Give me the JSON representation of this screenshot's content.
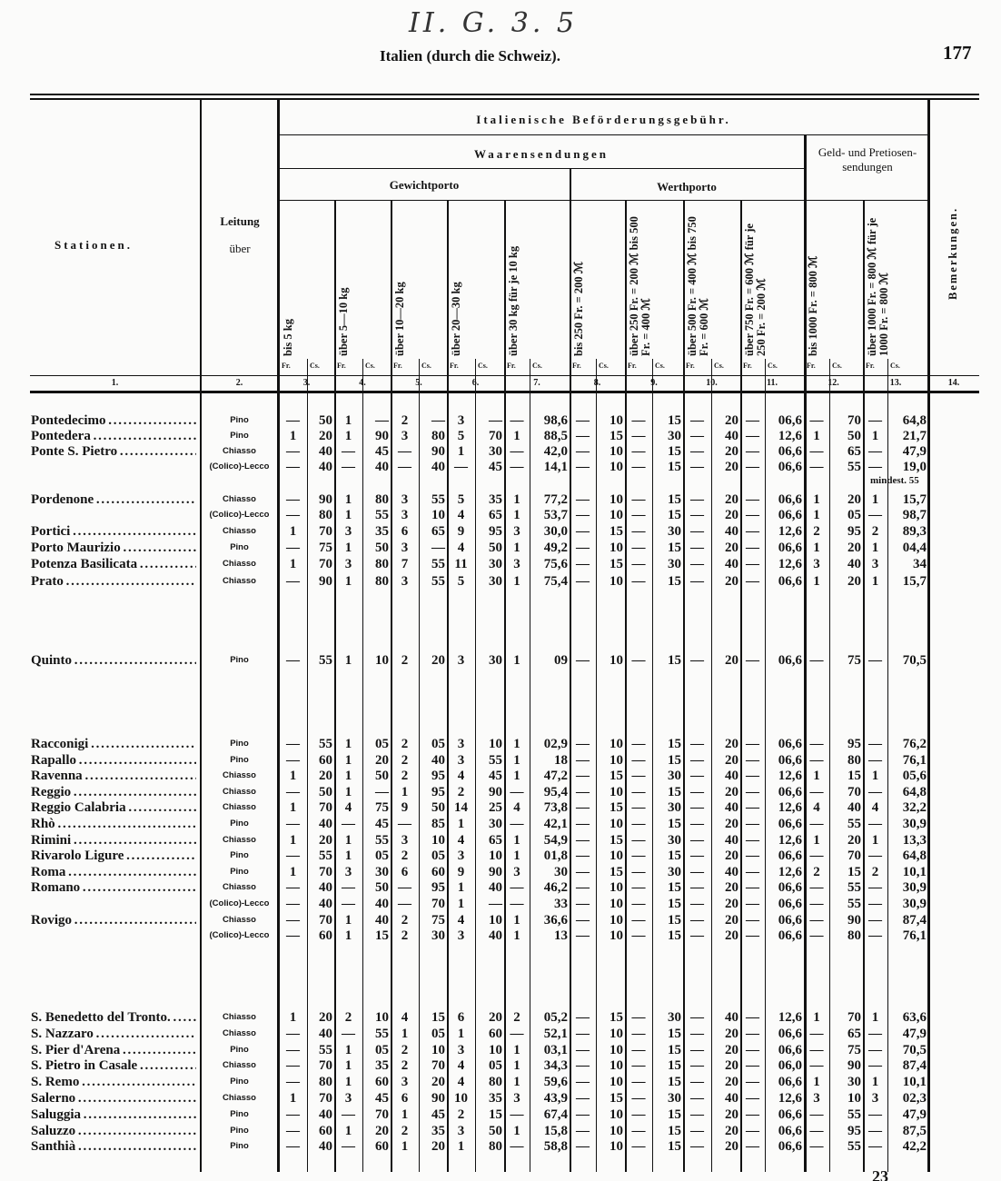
{
  "page": {
    "handwritten_mark": "II. G. 3. 5",
    "title": "Italien (durch die Schweiz).",
    "page_number": "177",
    "footer_number": "23"
  },
  "header": {
    "stations": "Stationen.",
    "leitung": "Leitung",
    "ueber": "über",
    "main": "Italienische Beförderungsgebühr.",
    "waaren": "Waarensendungen",
    "gewicht": "Gewichtporto",
    "werth": "Werthporto",
    "geld": "Geld- und Pretiosen-sendungen",
    "bemerkungen": "Bemerkungen.",
    "fr": "Fr.",
    "cs": "Cs.",
    "columns": [
      "bis 5 kg",
      "über 5—10 kg",
      "über 10—20 kg",
      "über 20—30 kg",
      "über 30 kg für je 10 kg",
      "bis 250 Fr. = 200 ℳ",
      "über 250 Fr. = 200 ℳ bis 500 Fr. = 400 ℳ",
      "über 500 Fr. = 400 ℳ bis 750 Fr. = 600 ℳ",
      "über 750 Fr. = 600 ℳ für je 250 Fr. = 200 ℳ",
      "bis 1000 Fr. = 800 ℳ",
      "über 1000 Fr. = 800 ℳ für je 1000 Fr. = 800 ℳ"
    ],
    "column_numbers": [
      "1.",
      "2.",
      "3.",
      "4.",
      "5.",
      "6.",
      "7.",
      "8.",
      "9.",
      "10.",
      "11.",
      "12.",
      "13.",
      "14."
    ]
  },
  "note": "mindest. 55",
  "rows": [
    {
      "station": "Pontedecimo",
      "via": "Pino",
      "v": [
        "—",
        "50",
        "1",
        "—",
        "2",
        "—",
        "3",
        "—",
        "—",
        "98,6",
        "—",
        "10",
        "—",
        "15",
        "—",
        "20",
        "—",
        "06,6",
        "—",
        "70",
        "—",
        "64,8"
      ]
    },
    {
      "station": "Pontedera",
      "via": "Pino",
      "v": [
        "1",
        "20",
        "1",
        "90",
        "3",
        "80",
        "5",
        "70",
        "1",
        "88,5",
        "—",
        "15",
        "—",
        "30",
        "—",
        "40",
        "—",
        "12,6",
        "1",
        "50",
        "1",
        "21,7"
      ]
    },
    {
      "station": "Ponte S. Pietro",
      "via": "Chiasso",
      "v": [
        "—",
        "40",
        "—",
        "45",
        "—",
        "90",
        "1",
        "30",
        "—",
        "42,0",
        "—",
        "10",
        "—",
        "15",
        "—",
        "20",
        "—",
        "06,6",
        "—",
        "65",
        "—",
        "47,9"
      ]
    },
    {
      "station": "",
      "via": "(Colico)-Lecco",
      "v": [
        "—",
        "40",
        "—",
        "40",
        "—",
        "40",
        "—",
        "45",
        "—",
        "14,1",
        "—",
        "10",
        "—",
        "15",
        "—",
        "20",
        "—",
        "06,6",
        "—",
        "55",
        "—",
        "19,0"
      ]
    },
    {
      "station": "Pordenone",
      "via": "Chiasso",
      "v": [
        "—",
        "90",
        "1",
        "80",
        "3",
        "55",
        "5",
        "35",
        "1",
        "77,2",
        "—",
        "10",
        "—",
        "15",
        "—",
        "20",
        "—",
        "06,6",
        "1",
        "20",
        "1",
        "15,7"
      ]
    },
    {
      "station": "",
      "via": "(Colico)-Lecco",
      "v": [
        "—",
        "80",
        "1",
        "55",
        "3",
        "10",
        "4",
        "65",
        "1",
        "53,7",
        "—",
        "10",
        "—",
        "15",
        "—",
        "20",
        "—",
        "06,6",
        "1",
        "05",
        "—",
        "98,7"
      ]
    },
    {
      "station": "Portici",
      "via": "Chiasso",
      "v": [
        "1",
        "70",
        "3",
        "35",
        "6",
        "65",
        "9",
        "95",
        "3",
        "30,0",
        "—",
        "15",
        "—",
        "30",
        "—",
        "40",
        "—",
        "12,6",
        "2",
        "95",
        "2",
        "89,3"
      ]
    },
    {
      "station": "Porto Maurizio",
      "via": "Pino",
      "v": [
        "—",
        "75",
        "1",
        "50",
        "3",
        "—",
        "4",
        "50",
        "1",
        "49,2",
        "—",
        "10",
        "—",
        "15",
        "—",
        "20",
        "—",
        "06,6",
        "1",
        "20",
        "1",
        "04,4"
      ]
    },
    {
      "station": "Potenza Basilicata",
      "via": "Chiasso",
      "v": [
        "1",
        "70",
        "3",
        "80",
        "7",
        "55",
        "11",
        "30",
        "3",
        "75,6",
        "—",
        "15",
        "—",
        "30",
        "—",
        "40",
        "—",
        "12,6",
        "3",
        "40",
        "3",
        "34"
      ]
    },
    {
      "station": "Prato",
      "via": "Chiasso",
      "v": [
        "—",
        "90",
        "1",
        "80",
        "3",
        "55",
        "5",
        "30",
        "1",
        "75,4",
        "—",
        "10",
        "—",
        "15",
        "—",
        "20",
        "—",
        "06,6",
        "1",
        "20",
        "1",
        "15,7"
      ]
    },
    {
      "station": "Quinto",
      "via": "Pino",
      "v": [
        "—",
        "55",
        "1",
        "10",
        "2",
        "20",
        "3",
        "30",
        "1",
        "09",
        "—",
        "10",
        "—",
        "15",
        "—",
        "20",
        "—",
        "06,6",
        "—",
        "75",
        "—",
        "70,5"
      ]
    },
    {
      "station": "Racconigi",
      "via": "Pino",
      "v": [
        "—",
        "55",
        "1",
        "05",
        "2",
        "05",
        "3",
        "10",
        "1",
        "02,9",
        "—",
        "10",
        "—",
        "15",
        "—",
        "20",
        "—",
        "06,6",
        "—",
        "95",
        "—",
        "76,2"
      ]
    },
    {
      "station": "Rapallo",
      "via": "Pino",
      "v": [
        "—",
        "60",
        "1",
        "20",
        "2",
        "40",
        "3",
        "55",
        "1",
        "18",
        "—",
        "10",
        "—",
        "15",
        "—",
        "20",
        "—",
        "06,6",
        "—",
        "80",
        "—",
        "76,1"
      ]
    },
    {
      "station": "Ravenna",
      "via": "Chiasso",
      "v": [
        "1",
        "20",
        "1",
        "50",
        "2",
        "95",
        "4",
        "45",
        "1",
        "47,2",
        "—",
        "15",
        "—",
        "30",
        "—",
        "40",
        "—",
        "12,6",
        "1",
        "15",
        "1",
        "05,6"
      ]
    },
    {
      "station": "Reggio",
      "via": "Chiasso",
      "v": [
        "—",
        "50",
        "1",
        "—",
        "1",
        "95",
        "2",
        "90",
        "—",
        "95,4",
        "—",
        "10",
        "—",
        "15",
        "—",
        "20",
        "—",
        "06,6",
        "—",
        "70",
        "—",
        "64,8"
      ]
    },
    {
      "station": "Reggio Calabria",
      "via": "Chiasso",
      "v": [
        "1",
        "70",
        "4",
        "75",
        "9",
        "50",
        "14",
        "25",
        "4",
        "73,8",
        "—",
        "15",
        "—",
        "30",
        "—",
        "40",
        "—",
        "12,6",
        "4",
        "40",
        "4",
        "32,2"
      ]
    },
    {
      "station": "Rhò",
      "via": "Pino",
      "v": [
        "—",
        "40",
        "—",
        "45",
        "—",
        "85",
        "1",
        "30",
        "—",
        "42,1",
        "—",
        "10",
        "—",
        "15",
        "—",
        "20",
        "—",
        "06,6",
        "—",
        "55",
        "—",
        "30,9"
      ]
    },
    {
      "station": "Rimini",
      "via": "Chiasso",
      "v": [
        "1",
        "20",
        "1",
        "55",
        "3",
        "10",
        "4",
        "65",
        "1",
        "54,9",
        "—",
        "15",
        "—",
        "30",
        "—",
        "40",
        "—",
        "12,6",
        "1",
        "20",
        "1",
        "13,3"
      ]
    },
    {
      "station": "Rivarolo Ligure",
      "via": "Pino",
      "v": [
        "—",
        "55",
        "1",
        "05",
        "2",
        "05",
        "3",
        "10",
        "1",
        "01,8",
        "—",
        "10",
        "—",
        "15",
        "—",
        "20",
        "—",
        "06,6",
        "—",
        "70",
        "—",
        "64,8"
      ]
    },
    {
      "station": "Roma",
      "via": "Pino",
      "v": [
        "1",
        "70",
        "3",
        "30",
        "6",
        "60",
        "9",
        "90",
        "3",
        "30",
        "—",
        "15",
        "—",
        "30",
        "—",
        "40",
        "—",
        "12,6",
        "2",
        "15",
        "2",
        "10,1"
      ]
    },
    {
      "station": "Romano",
      "via": "Chiasso",
      "v": [
        "—",
        "40",
        "—",
        "50",
        "—",
        "95",
        "1",
        "40",
        "—",
        "46,2",
        "—",
        "10",
        "—",
        "15",
        "—",
        "20",
        "—",
        "06,6",
        "—",
        "55",
        "—",
        "30,9"
      ]
    },
    {
      "station": "",
      "via": "(Colico)-Lecco",
      "v": [
        "—",
        "40",
        "—",
        "40",
        "—",
        "70",
        "1",
        "—",
        "—",
        "33",
        "—",
        "10",
        "—",
        "15",
        "—",
        "20",
        "—",
        "06,6",
        "—",
        "55",
        "—",
        "30,9"
      ]
    },
    {
      "station": "Rovigo",
      "via": "Chiasso",
      "v": [
        "—",
        "70",
        "1",
        "40",
        "2",
        "75",
        "4",
        "10",
        "1",
        "36,6",
        "—",
        "10",
        "—",
        "15",
        "—",
        "20",
        "—",
        "06,6",
        "—",
        "90",
        "—",
        "87,4"
      ]
    },
    {
      "station": "",
      "via": "(Colico)-Lecco",
      "v": [
        "—",
        "60",
        "1",
        "15",
        "2",
        "30",
        "3",
        "40",
        "1",
        "13",
        "—",
        "10",
        "—",
        "15",
        "—",
        "20",
        "—",
        "06,6",
        "—",
        "80",
        "—",
        "76,1"
      ]
    },
    {
      "station": "S. Benedetto del Tronto.",
      "via": "Chiasso",
      "v": [
        "1",
        "20",
        "2",
        "10",
        "4",
        "15",
        "6",
        "20",
        "2",
        "05,2",
        "—",
        "15",
        "—",
        "30",
        "—",
        "40",
        "—",
        "12,6",
        "1",
        "70",
        "1",
        "63,6"
      ]
    },
    {
      "station": "S. Nazzaro",
      "via": "Chiasso",
      "v": [
        "—",
        "40",
        "—",
        "55",
        "1",
        "05",
        "1",
        "60",
        "—",
        "52,1",
        "—",
        "10",
        "—",
        "15",
        "—",
        "20",
        "—",
        "06,6",
        "—",
        "65",
        "—",
        "47,9"
      ]
    },
    {
      "station": "S. Pier d'Arena",
      "via": "Pino",
      "v": [
        "—",
        "55",
        "1",
        "05",
        "2",
        "10",
        "3",
        "10",
        "1",
        "03,1",
        "—",
        "10",
        "—",
        "15",
        "—",
        "20",
        "—",
        "06,6",
        "—",
        "75",
        "—",
        "70,5"
      ]
    },
    {
      "station": "S. Pietro in Casale",
      "via": "Chiasso",
      "v": [
        "—",
        "70",
        "1",
        "35",
        "2",
        "70",
        "4",
        "05",
        "1",
        "34,3",
        "—",
        "10",
        "—",
        "15",
        "—",
        "20",
        "—",
        "06,0",
        "—",
        "90",
        "—",
        "87,4"
      ]
    },
    {
      "station": "S. Remo",
      "via": "Pino",
      "v": [
        "—",
        "80",
        "1",
        "60",
        "3",
        "20",
        "4",
        "80",
        "1",
        "59,6",
        "—",
        "10",
        "—",
        "15",
        "—",
        "20",
        "—",
        "06,6",
        "1",
        "30",
        "1",
        "10,1"
      ]
    },
    {
      "station": "Salerno",
      "via": "Chiasso",
      "v": [
        "1",
        "70",
        "3",
        "45",
        "6",
        "90",
        "10",
        "35",
        "3",
        "43,9",
        "—",
        "15",
        "—",
        "30",
        "—",
        "40",
        "—",
        "12,6",
        "3",
        "10",
        "3",
        "02,3"
      ]
    },
    {
      "station": "Saluggia",
      "via": "Pino",
      "v": [
        "—",
        "40",
        "—",
        "70",
        "1",
        "45",
        "2",
        "15",
        "—",
        "67,4",
        "—",
        "10",
        "—",
        "15",
        "—",
        "20",
        "—",
        "06,6",
        "—",
        "55",
        "—",
        "47,9"
      ]
    },
    {
      "station": "Saluzzo",
      "via": "Pino",
      "v": [
        "—",
        "60",
        "1",
        "20",
        "2",
        "35",
        "3",
        "50",
        "1",
        "15,8",
        "—",
        "10",
        "—",
        "15",
        "—",
        "20",
        "—",
        "06,6",
        "—",
        "95",
        "—",
        "87,5"
      ]
    },
    {
      "station": "Santhià",
      "via": "Pino",
      "v": [
        "—",
        "40",
        "—",
        "60",
        "1",
        "20",
        "1",
        "80",
        "—",
        "58,8",
        "—",
        "10",
        "—",
        "15",
        "—",
        "20",
        "—",
        "06,6",
        "—",
        "55",
        "—",
        "42,2"
      ]
    }
  ]
}
